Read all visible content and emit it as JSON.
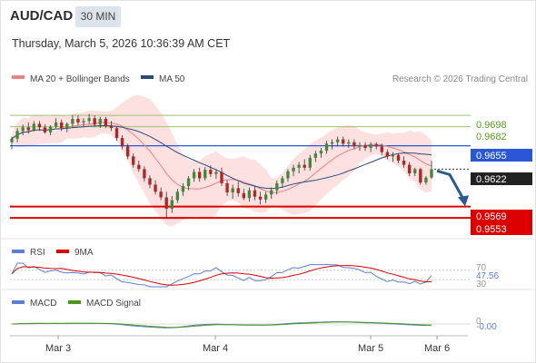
{
  "header": {
    "symbol": "AUD/CAD",
    "timeframe": "30 MIN",
    "datetime": "Thursday, March 5, 2026 10:36:39 AM CET"
  },
  "legend": {
    "ma20_label": "MA 20 + Bollinger Bands",
    "ma50_label": "MA 50",
    "credit": "Research © 2026 Trading Central"
  },
  "colors": {
    "ma20": "#f08080",
    "ma50": "#2a4a7a",
    "band_fill": "#fde0e0",
    "up_candle": "#3f8a3a",
    "down_candle": "#b02525",
    "pivot_line": "#2a57d6",
    "target_line": "#dd0000",
    "resistance_line": "#9bc26a",
    "price_badge": "#222222",
    "arrow": "#2a5a96",
    "rsi": "#5b7fd6",
    "rsi_ma": "#dd0000",
    "macd": "#5b7fd6",
    "macd_signal": "#4a9a1a"
  },
  "levels": {
    "r2": "0.9698",
    "r1": "0.9682",
    "pivot": "0.9655",
    "current": "0.9622",
    "s1": "0.9569",
    "s2": "0.9553"
  },
  "rsi_panel": {
    "legend_rsi": "RSI",
    "legend_ma": "9MA",
    "level_70": "70",
    "value": "47.56",
    "level_30": "30"
  },
  "macd_panel": {
    "legend_macd": "MACD",
    "legend_signal": "MACD Signal",
    "zero_label": "0",
    "value": "-0.00"
  },
  "x_axis": {
    "labels": [
      "Mar 3",
      "Mar 4",
      "Mar 5",
      "Mar 6"
    ]
  },
  "chart_data": {
    "type": "candlestick",
    "title": "AUD/CAD",
    "timeframe": "30 MIN",
    "x_labels": [
      "Mar 3",
      "Mar 4",
      "Mar 5",
      "Mar 6"
    ],
    "ylim": [
      0.953,
      0.972
    ],
    "candles": [
      [
        0.966,
        0.9668,
        0.965,
        0.9665
      ],
      [
        0.9665,
        0.968,
        0.966,
        0.9676
      ],
      [
        0.9676,
        0.9685,
        0.967,
        0.9681
      ],
      [
        0.9681,
        0.9688,
        0.9672,
        0.9677
      ],
      [
        0.9677,
        0.969,
        0.9675,
        0.9686
      ],
      [
        0.9686,
        0.969,
        0.9676,
        0.9681
      ],
      [
        0.9681,
        0.9685,
        0.9672,
        0.9674
      ],
      [
        0.9674,
        0.9684,
        0.967,
        0.9682
      ],
      [
        0.9682,
        0.9694,
        0.968,
        0.9688
      ],
      [
        0.9688,
        0.9692,
        0.9676,
        0.968
      ],
      [
        0.968,
        0.9688,
        0.9674,
        0.9686
      ],
      [
        0.9686,
        0.9698,
        0.9682,
        0.9693
      ],
      [
        0.9693,
        0.9698,
        0.9684,
        0.9688
      ],
      [
        0.9688,
        0.9694,
        0.9682,
        0.969
      ],
      [
        0.969,
        0.97,
        0.9686,
        0.9694
      ],
      [
        0.9694,
        0.9698,
        0.9682,
        0.9685
      ],
      [
        0.9685,
        0.9696,
        0.968,
        0.9693
      ],
      [
        0.9693,
        0.9696,
        0.968,
        0.9683
      ],
      [
        0.9683,
        0.969,
        0.9676,
        0.968
      ],
      [
        0.968,
        0.9682,
        0.9662,
        0.9666
      ],
      [
        0.9666,
        0.967,
        0.965,
        0.9654
      ],
      [
        0.9654,
        0.9658,
        0.9636,
        0.964
      ],
      [
        0.964,
        0.9644,
        0.9624,
        0.9628
      ],
      [
        0.9628,
        0.9634,
        0.9618,
        0.9622
      ],
      [
        0.9622,
        0.9626,
        0.9604,
        0.9609
      ],
      [
        0.9609,
        0.9613,
        0.9595,
        0.96
      ],
      [
        0.96,
        0.9606,
        0.9586,
        0.959
      ],
      [
        0.959,
        0.9596,
        0.9578,
        0.9582
      ],
      [
        0.9582,
        0.959,
        0.9552,
        0.9566
      ],
      [
        0.9566,
        0.9584,
        0.956,
        0.9578
      ],
      [
        0.9578,
        0.9594,
        0.9574,
        0.959
      ],
      [
        0.959,
        0.9602,
        0.9584,
        0.9598
      ],
      [
        0.9598,
        0.9612,
        0.9592,
        0.9609
      ],
      [
        0.9609,
        0.9622,
        0.9604,
        0.9618
      ],
      [
        0.9618,
        0.9624,
        0.9604,
        0.9609
      ],
      [
        0.9609,
        0.9625,
        0.9606,
        0.9621
      ],
      [
        0.9621,
        0.9627,
        0.9611,
        0.9615
      ],
      [
        0.9615,
        0.9622,
        0.9608,
        0.9618
      ],
      [
        0.9618,
        0.9624,
        0.9598,
        0.9602
      ],
      [
        0.9602,
        0.9606,
        0.9584,
        0.9589
      ],
      [
        0.9589,
        0.96,
        0.958,
        0.9595
      ],
      [
        0.9595,
        0.9604,
        0.9583,
        0.9588
      ],
      [
        0.9588,
        0.9594,
        0.9578,
        0.9581
      ],
      [
        0.9581,
        0.9596,
        0.9576,
        0.9592
      ],
      [
        0.9592,
        0.9598,
        0.9578,
        0.9583
      ],
      [
        0.9583,
        0.959,
        0.9572,
        0.9579
      ],
      [
        0.9579,
        0.959,
        0.9574,
        0.9586
      ],
      [
        0.9586,
        0.9596,
        0.958,
        0.9592
      ],
      [
        0.9592,
        0.9606,
        0.9586,
        0.9602
      ],
      [
        0.9602,
        0.9612,
        0.9596,
        0.9609
      ],
      [
        0.9609,
        0.9622,
        0.9604,
        0.9619
      ],
      [
        0.9619,
        0.9628,
        0.9612,
        0.9624
      ],
      [
        0.9624,
        0.9632,
        0.9616,
        0.9628
      ],
      [
        0.9628,
        0.9636,
        0.962,
        0.9624
      ],
      [
        0.9624,
        0.9642,
        0.962,
        0.9638
      ],
      [
        0.9638,
        0.9648,
        0.9632,
        0.9644
      ],
      [
        0.9644,
        0.9652,
        0.9638,
        0.9648
      ],
      [
        0.9648,
        0.9662,
        0.9644,
        0.9658
      ],
      [
        0.9658,
        0.9664,
        0.965,
        0.966
      ],
      [
        0.966,
        0.9668,
        0.9654,
        0.9664
      ],
      [
        0.9664,
        0.9668,
        0.9654,
        0.9658
      ],
      [
        0.9658,
        0.9664,
        0.9652,
        0.966
      ],
      [
        0.966,
        0.9664,
        0.965,
        0.9654
      ],
      [
        0.9654,
        0.966,
        0.9648,
        0.9656
      ],
      [
        0.9656,
        0.966,
        0.9648,
        0.9652
      ],
      [
        0.9652,
        0.966,
        0.9646,
        0.9657
      ],
      [
        0.9657,
        0.966,
        0.965,
        0.9654
      ],
      [
        0.9654,
        0.9658,
        0.9642,
        0.9646
      ],
      [
        0.9646,
        0.965,
        0.9636,
        0.964
      ],
      [
        0.964,
        0.9646,
        0.9632,
        0.9642
      ],
      [
        0.9642,
        0.9644,
        0.963,
        0.9634
      ],
      [
        0.9634,
        0.964,
        0.9624,
        0.9628
      ],
      [
        0.9628,
        0.9632,
        0.9612,
        0.9616
      ],
      [
        0.9616,
        0.9624,
        0.9612,
        0.9622
      ],
      [
        0.9622,
        0.9624,
        0.96,
        0.9603
      ],
      [
        0.9603,
        0.9612,
        0.96,
        0.961
      ],
      [
        0.961,
        0.9634,
        0.9608,
        0.9622
      ]
    ],
    "ma_series": [
      {
        "name": "MA 20 + Bollinger Bands",
        "role": "ma20"
      },
      {
        "name": "MA 50",
        "role": "ma50"
      }
    ],
    "horizontal_levels": [
      {
        "value": 0.9698,
        "kind": "resistance"
      },
      {
        "value": 0.9682,
        "kind": "resistance"
      },
      {
        "value": 0.9655,
        "kind": "pivot"
      },
      {
        "value": 0.9622,
        "kind": "current"
      },
      {
        "value": 0.9569,
        "kind": "support"
      },
      {
        "value": 0.9553,
        "kind": "support"
      }
    ],
    "forecast_arrow": {
      "from": 0.9622,
      "to": 0.9572,
      "direction": "down"
    },
    "rsi": {
      "ylim": [
        0,
        100
      ],
      "levels": [
        70,
        30
      ],
      "last": 47.56
    },
    "macd": {
      "last": -0.0
    }
  }
}
